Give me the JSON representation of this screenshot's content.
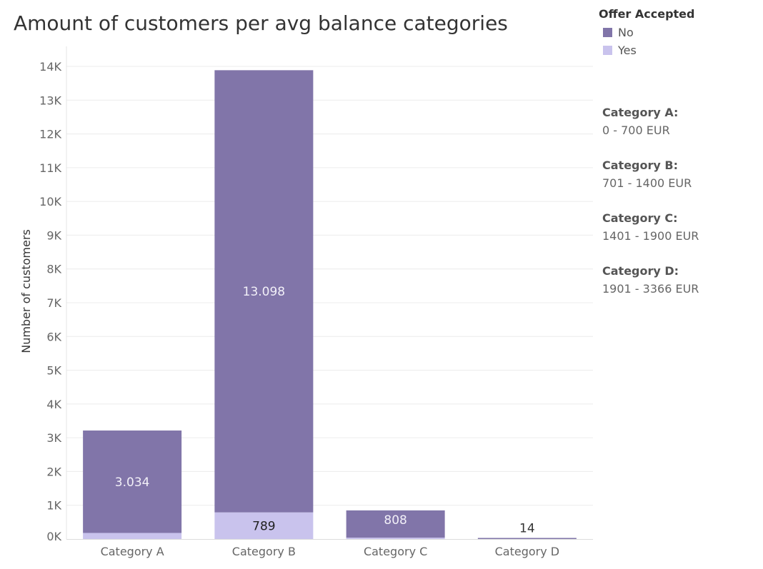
{
  "chart_data": {
    "type": "bar",
    "stacked": true,
    "title": "Amount of customers per avg balance categories",
    "ylabel": "Number of customers",
    "xlabel": "",
    "ylim": [
      0,
      14000
    ],
    "yticks": [
      "0K",
      "1K",
      "2K",
      "3K",
      "4K",
      "5K",
      "6K",
      "7K",
      "8K",
      "9K",
      "10K",
      "11K",
      "12K",
      "13K",
      "14K"
    ],
    "grid": true,
    "legend_position": "top-right",
    "categories": [
      "Category A",
      "Category B",
      "Category C",
      "Category D"
    ],
    "series": [
      {
        "name": "Yes",
        "color": "#c9c3ed",
        "values": [
          180,
          789,
          40,
          0
        ],
        "labels": [
          "",
          "789",
          "",
          ""
        ]
      },
      {
        "name": "No",
        "color": "#8175a9",
        "values": [
          3034,
          13098,
          808,
          14
        ],
        "labels": [
          "3.034",
          "13.098",
          "808",
          "14"
        ]
      }
    ]
  },
  "legend": {
    "title": "Offer Accepted",
    "items": [
      {
        "label": "No",
        "color": "#8175a9"
      },
      {
        "label": "Yes",
        "color": "#c9c3ed"
      }
    ]
  },
  "notes": [
    {
      "head": "Category A:",
      "range": "0 - 700 EUR"
    },
    {
      "head": "Category B:",
      "range": "701 - 1400 EUR"
    },
    {
      "head": "Category C:",
      "range": "1401 - 1900 EUR"
    },
    {
      "head": "Category D:",
      "range": "1901 - 3366 EUR"
    }
  ]
}
